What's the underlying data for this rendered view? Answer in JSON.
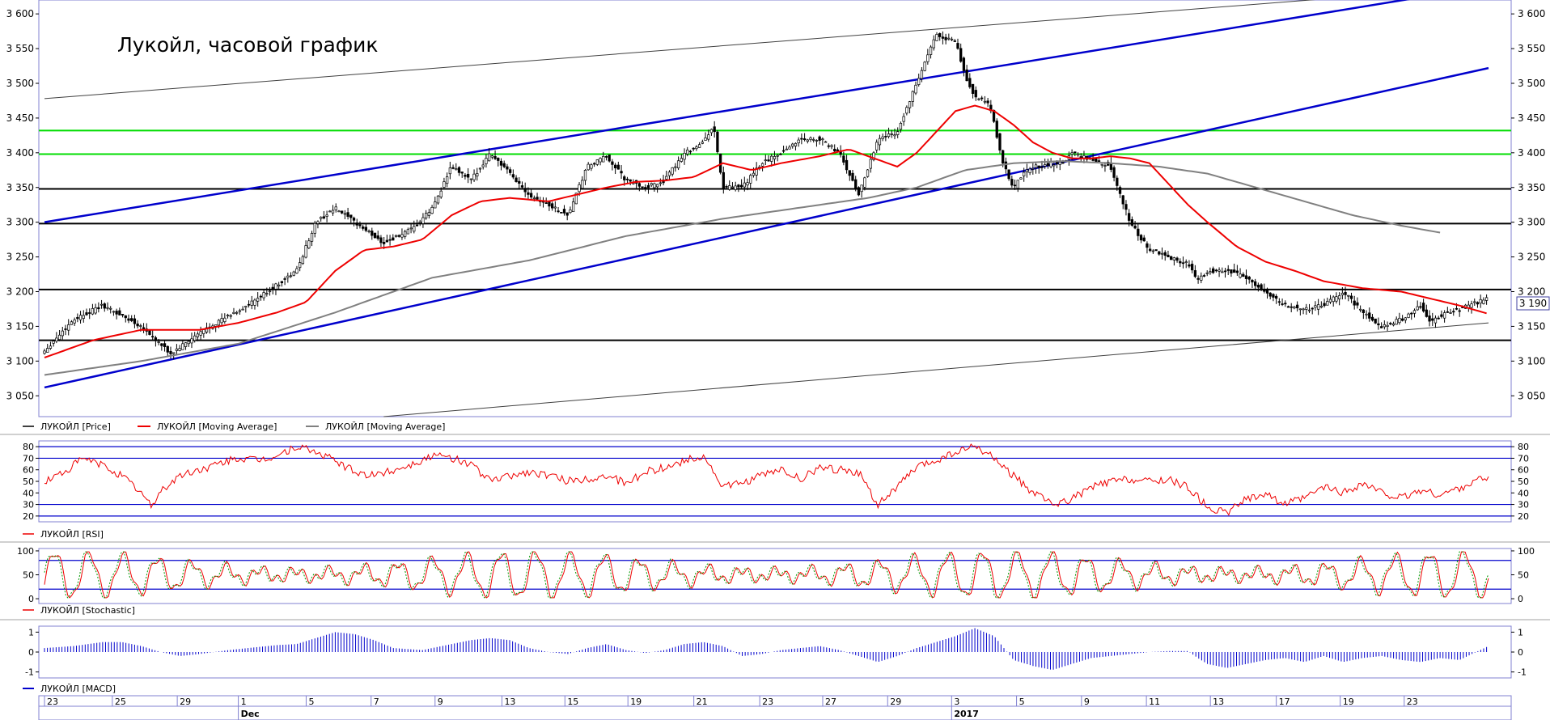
{
  "chart_data": [
    {
      "type": "candlestick",
      "title": "Лукойл, часовой график",
      "ylim": [
        3020,
        3620
      ],
      "y_ticks": [
        "3 050",
        "3 100",
        "3 150",
        "3 200",
        "3 250",
        "3 300",
        "3 350",
        "3 400",
        "3 450",
        "3 500",
        "3 550",
        "3 600"
      ],
      "last_price_label": "3 190",
      "legend": [
        "ЛУКОЙЛ [Price]",
        "ЛУКОЙЛ [Moving Average]",
        "ЛУКОЙЛ [Moving Average]"
      ],
      "colors": {
        "price": "#000000",
        "ma_fast": "#ee0000",
        "ma_slow": "#808080",
        "channel": "#0000cc",
        "level_green": "#00dd00",
        "level_black": "#000000",
        "trend_thin": "#404040"
      },
      "horizontal_levels": [
        {
          "y": 3432,
          "color": "green"
        },
        {
          "y": 3398,
          "color": "green"
        },
        {
          "y": 3348,
          "color": "black"
        },
        {
          "y": 3298,
          "color": "black"
        },
        {
          "y": 3203,
          "color": "black"
        },
        {
          "y": 3130,
          "color": "black"
        }
      ],
      "trend_lines": [
        {
          "x": [
            0,
            1490
          ],
          "y": [
            3300,
            3640
          ],
          "color": "blue"
        },
        {
          "x": [
            0,
            1490
          ],
          "y": [
            3062,
            3522
          ],
          "color": "blue"
        },
        {
          "x": [
            0,
            1490
          ],
          "y": [
            3478,
            3640
          ],
          "color": "gray"
        },
        {
          "x": [
            350,
            1490
          ],
          "y": [
            3020,
            3155
          ],
          "color": "gray"
        }
      ],
      "price_anchors": {
        "x": [
          0,
          30,
          60,
          100,
          130,
          170,
          210,
          240,
          260,
          280,
          300,
          320,
          350,
          380,
          400,
          420,
          440,
          460,
          480,
          500,
          520,
          540,
          560,
          580,
          600,
          620,
          640,
          660,
          680,
          690,
          700,
          720,
          740,
          760,
          780,
          800,
          820,
          840,
          860,
          880,
          900,
          920,
          940,
          950,
          960,
          975,
          990,
          1000,
          1010,
          1020,
          1030,
          1040,
          1050,
          1060,
          1080,
          1100,
          1120,
          1140,
          1160,
          1180,
          1190,
          1200,
          1220,
          1240,
          1260,
          1280,
          1300,
          1320,
          1340,
          1360,
          1380,
          1400,
          1420,
          1430,
          1440,
          1460,
          1490
        ],
        "y": [
          3115,
          3160,
          3180,
          3150,
          3110,
          3150,
          3180,
          3210,
          3230,
          3300,
          3320,
          3300,
          3270,
          3290,
          3320,
          3380,
          3360,
          3400,
          3370,
          3340,
          3325,
          3310,
          3380,
          3395,
          3360,
          3350,
          3360,
          3400,
          3415,
          3440,
          3350,
          3350,
          3385,
          3400,
          3420,
          3420,
          3400,
          3340,
          3420,
          3430,
          3500,
          3570,
          3560,
          3510,
          3480,
          3470,
          3380,
          3350,
          3370,
          3380,
          3380,
          3385,
          3385,
          3400,
          3390,
          3380,
          3300,
          3260,
          3250,
          3240,
          3215,
          3230,
          3230,
          3220,
          3200,
          3180,
          3175,
          3180,
          3200,
          3170,
          3150,
          3160,
          3180,
          3155,
          3165,
          3175,
          3190
        ]
      },
      "ma_fast_anchors": {
        "x": [
          0,
          50,
          100,
          160,
          200,
          240,
          270,
          300,
          330,
          360,
          390,
          420,
          450,
          480,
          520,
          550,
          580,
          610,
          640,
          670,
          700,
          730,
          760,
          800,
          830,
          860,
          880,
          900,
          920,
          940,
          960,
          980,
          1000,
          1020,
          1040,
          1060,
          1080,
          1100,
          1120,
          1140,
          1160,
          1180,
          1200,
          1230,
          1260,
          1290,
          1320,
          1360,
          1400,
          1430,
          1460,
          1490
        ],
        "y": [
          3105,
          3130,
          3145,
          3145,
          3155,
          3170,
          3185,
          3230,
          3260,
          3265,
          3275,
          3310,
          3330,
          3335,
          3330,
          3340,
          3350,
          3358,
          3360,
          3365,
          3385,
          3375,
          3385,
          3395,
          3405,
          3390,
          3380,
          3400,
          3430,
          3460,
          3468,
          3460,
          3440,
          3415,
          3400,
          3392,
          3392,
          3395,
          3392,
          3385,
          3355,
          3325,
          3300,
          3265,
          3243,
          3230,
          3215,
          3205,
          3200,
          3190,
          3180,
          3168
        ]
      },
      "ma_slow_anchors": {
        "x": [
          0,
          100,
          200,
          300,
          400,
          500,
          600,
          700,
          800,
          850,
          900,
          950,
          1000,
          1050,
          1100,
          1150,
          1200,
          1250,
          1300,
          1350,
          1400,
          1440
        ],
        "y": [
          3080,
          3100,
          3125,
          3170,
          3220,
          3245,
          3280,
          3305,
          3325,
          3335,
          3350,
          3375,
          3385,
          3388,
          3385,
          3380,
          3370,
          3350,
          3330,
          3310,
          3295,
          3285
        ]
      }
    },
    {
      "type": "line",
      "legend": "ЛУКОЙЛ [RSI]",
      "ylim": [
        15,
        85
      ],
      "y_ticks": [
        "80",
        "70",
        "60",
        "50",
        "40",
        "30",
        "20"
      ],
      "bands": [
        80,
        70,
        30,
        20
      ],
      "anchors": {
        "x": [
          0,
          20,
          40,
          60,
          80,
          100,
          110,
          120,
          140,
          160,
          180,
          200,
          220,
          240,
          260,
          280,
          300,
          320,
          340,
          360,
          380,
          400,
          420,
          440,
          460,
          480,
          500,
          520,
          540,
          560,
          580,
          600,
          620,
          640,
          660,
          680,
          700,
          720,
          740,
          760,
          780,
          800,
          820,
          840,
          860,
          880,
          900,
          920,
          940,
          960,
          980,
          1000,
          1020,
          1040,
          1060,
          1080,
          1100,
          1120,
          1140,
          1160,
          1180,
          1200,
          1220,
          1240,
          1260,
          1280,
          1300,
          1320,
          1340,
          1360,
          1380,
          1400,
          1420,
          1440,
          1460,
          1490
        ],
        "y": [
          50,
          58,
          70,
          64,
          55,
          40,
          28,
          42,
          55,
          60,
          65,
          70,
          68,
          72,
          80,
          75,
          68,
          58,
          55,
          60,
          65,
          72,
          70,
          65,
          50,
          55,
          58,
          55,
          50,
          52,
          55,
          48,
          58,
          62,
          68,
          72,
          45,
          48,
          55,
          60,
          52,
          62,
          60,
          58,
          30,
          45,
          62,
          68,
          75,
          80,
          70,
          55,
          40,
          30,
          35,
          45,
          50,
          52,
          50,
          52,
          45,
          28,
          22,
          35,
          40,
          30,
          35,
          45,
          40,
          48,
          40,
          35,
          42,
          38,
          44,
          55
        ]
      }
    },
    {
      "type": "line",
      "legend": "ЛУКОЙЛ [Stochastic]",
      "ylim": [
        -10,
        105
      ],
      "y_ticks": [
        "100",
        "50",
        "0"
      ],
      "bands": [
        80,
        20
      ],
      "cycles": 42,
      "seed": 7
    },
    {
      "type": "bar",
      "legend": "ЛУКОЙЛ [MACD]",
      "ylim": [
        -1.3,
        1.3
      ],
      "y_ticks": [
        "1",
        "0",
        "-1"
      ],
      "anchors": {
        "x": [
          0,
          30,
          60,
          80,
          100,
          120,
          140,
          160,
          190,
          210,
          240,
          260,
          280,
          300,
          320,
          340,
          360,
          390,
          410,
          440,
          460,
          480,
          500,
          520,
          540,
          560,
          580,
          600,
          620,
          640,
          660,
          680,
          700,
          720,
          740,
          760,
          780,
          800,
          820,
          840,
          860,
          880,
          900,
          920,
          940,
          960,
          980,
          1000,
          1020,
          1040,
          1060,
          1080,
          1100,
          1120,
          1140,
          1160,
          1180,
          1190,
          1200,
          1220,
          1240,
          1260,
          1280,
          1300,
          1320,
          1340,
          1360,
          1380,
          1400,
          1420,
          1440,
          1460,
          1490
        ],
        "y": [
          0.2,
          0.3,
          0.5,
          0.5,
          0.3,
          0,
          -0.2,
          -0.1,
          0.1,
          0.2,
          0.35,
          0.4,
          0.7,
          1.0,
          0.9,
          0.6,
          0.2,
          0.1,
          0.3,
          0.6,
          0.7,
          0.6,
          0.2,
          0,
          -0.1,
          0.2,
          0.4,
          0.1,
          -0.05,
          0.1,
          0.4,
          0.5,
          0.3,
          -0.2,
          -0.1,
          0.1,
          0.2,
          0.3,
          0.1,
          -0.2,
          -0.5,
          -0.2,
          0.2,
          0.5,
          0.8,
          1.2,
          0.8,
          -0.4,
          -0.7,
          -0.9,
          -0.6,
          -0.3,
          -0.2,
          -0.1,
          0,
          0.05,
          0.05,
          -0.3,
          -0.6,
          -0.8,
          -0.6,
          -0.4,
          -0.3,
          -0.5,
          -0.2,
          -0.5,
          -0.3,
          -0.2,
          -0.4,
          -0.5,
          -0.3,
          -0.4,
          0.3
        ]
      }
    }
  ],
  "x_axis": {
    "labels": [
      {
        "t": "23",
        "x": 0
      },
      {
        "t": "25",
        "x": 70
      },
      {
        "t": "29",
        "x": 137
      },
      {
        "t": "1",
        "x": 200
      },
      {
        "t": "5",
        "x": 270
      },
      {
        "t": "7",
        "x": 337
      },
      {
        "t": "9",
        "x": 403
      },
      {
        "t": "13",
        "x": 472
      },
      {
        "t": "15",
        "x": 537
      },
      {
        "t": "19",
        "x": 602
      },
      {
        "t": "21",
        "x": 670
      },
      {
        "t": "23",
        "x": 738
      },
      {
        "t": "27",
        "x": 803
      },
      {
        "t": "29",
        "x": 870
      },
      {
        "t": "3",
        "x": 936
      },
      {
        "t": "5",
        "x": 1003
      },
      {
        "t": "9",
        "x": 1070
      },
      {
        "t": "11",
        "x": 1137
      },
      {
        "t": "13",
        "x": 1203
      },
      {
        "t": "17",
        "x": 1271
      },
      {
        "t": "19",
        "x": 1337
      },
      {
        "t": "23",
        "x": 1403
      }
    ],
    "months": [
      {
        "t": "Dec",
        "x": 200
      },
      {
        "t": "2017",
        "x": 936
      }
    ]
  }
}
